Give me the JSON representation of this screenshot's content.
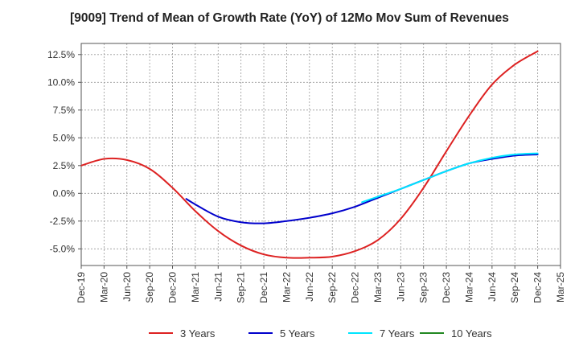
{
  "chart_data": {
    "type": "line",
    "title": "[9009]  Trend of Mean of Growth Rate (YoY) of 12Mo Mov Sum of Revenues",
    "xlabel": "",
    "ylabel": "",
    "ylim": [
      -6.5,
      13.5
    ],
    "y_ticks": [
      12.5,
      10.0,
      7.5,
      5.0,
      2.5,
      0.0,
      -2.5,
      -5.0
    ],
    "y_tick_labels": [
      "12.5%",
      "10.0%",
      "7.5%",
      "5.0%",
      "2.5%",
      "0.0%",
      "-2.5%",
      "-5.0%"
    ],
    "x_tick_labels": [
      "Dec-19",
      "Mar-20",
      "Jun-20",
      "Sep-20",
      "Dec-20",
      "Mar-21",
      "Jun-21",
      "Sep-21",
      "Dec-21",
      "Mar-22",
      "Jun-22",
      "Sep-22",
      "Dec-22",
      "Mar-23",
      "Jun-23",
      "Sep-23",
      "Dec-23",
      "Mar-24",
      "Jun-24",
      "Sep-24",
      "Dec-24",
      "Mar-25"
    ],
    "grid": true,
    "legend_position": "bottom",
    "series": [
      {
        "name": "3 Years",
        "color": "#dd2222",
        "points": [
          [
            0,
            2.5
          ],
          [
            1,
            3.1
          ],
          [
            2,
            3.0
          ],
          [
            3,
            2.2
          ],
          [
            4,
            0.5
          ],
          [
            5,
            -1.6
          ],
          [
            6,
            -3.4
          ],
          [
            7,
            -4.7
          ],
          [
            8,
            -5.5
          ],
          [
            9,
            -5.8
          ],
          [
            10,
            -5.8
          ],
          [
            11,
            -5.7
          ],
          [
            12,
            -5.2
          ],
          [
            13,
            -4.2
          ],
          [
            14,
            -2.3
          ],
          [
            15,
            0.5
          ],
          [
            16,
            3.8
          ],
          [
            17,
            7.0
          ],
          [
            18,
            9.8
          ],
          [
            19,
            11.6
          ],
          [
            20,
            12.8
          ]
        ]
      },
      {
        "name": "5 Years",
        "color": "#0000cc",
        "points": [
          [
            4.6,
            -0.5
          ],
          [
            5,
            -1.0
          ],
          [
            6,
            -2.1
          ],
          [
            7,
            -2.6
          ],
          [
            8,
            -2.7
          ],
          [
            9,
            -2.5
          ],
          [
            10,
            -2.2
          ],
          [
            11,
            -1.8
          ],
          [
            12,
            -1.2
          ],
          [
            13,
            -0.4
          ],
          [
            14,
            0.4
          ],
          [
            15,
            1.2
          ],
          [
            16,
            2.0
          ],
          [
            17,
            2.7
          ],
          [
            18,
            3.1
          ],
          [
            19,
            3.4
          ],
          [
            20,
            3.5
          ]
        ]
      },
      {
        "name": "7 Years",
        "color": "#00e5ff",
        "points": [
          [
            12.3,
            -0.8
          ],
          [
            13,
            -0.3
          ],
          [
            14,
            0.4
          ],
          [
            15,
            1.2
          ],
          [
            16,
            2.0
          ],
          [
            17,
            2.7
          ],
          [
            18,
            3.2
          ],
          [
            19,
            3.5
          ],
          [
            20,
            3.6
          ]
        ]
      },
      {
        "name": "10 Years",
        "color": "#228822",
        "points": []
      }
    ]
  }
}
